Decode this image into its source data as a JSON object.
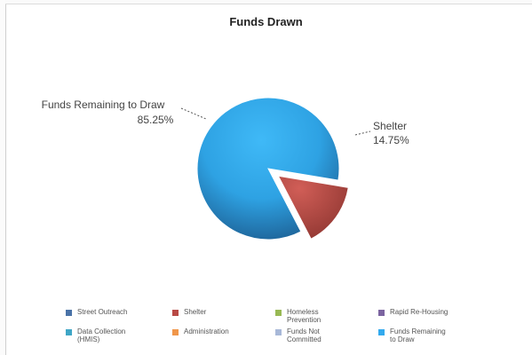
{
  "chart_data": {
    "type": "pie",
    "title": "Funds Drawn",
    "slices": [
      {
        "label": "Funds Remaining to Draw",
        "percent_label": "85.25%",
        "value": 85.25,
        "color": "#33aaee",
        "exploded": false
      },
      {
        "label": "Shelter",
        "percent_label": "14.75%",
        "value": 14.75,
        "color": "#b84a45",
        "exploded": true
      }
    ],
    "legend_position": "bottom",
    "legend": [
      {
        "label": "Street Outreach",
        "color": "#4a73a8"
      },
      {
        "label": "Shelter",
        "color": "#b84a45"
      },
      {
        "label": "Homeless Prevention",
        "color": "#98b954"
      },
      {
        "label": "Rapid Re-Housing",
        "color": "#7b64a0"
      },
      {
        "label": "Data Collection (HMIS)",
        "color": "#3fa6c6"
      },
      {
        "label": "Administration",
        "color": "#f0964a"
      },
      {
        "label": "Funds Not Committed",
        "color": "#a8b8d8"
      },
      {
        "label": "Funds Remaining to Draw",
        "color": "#33aaee"
      }
    ]
  }
}
